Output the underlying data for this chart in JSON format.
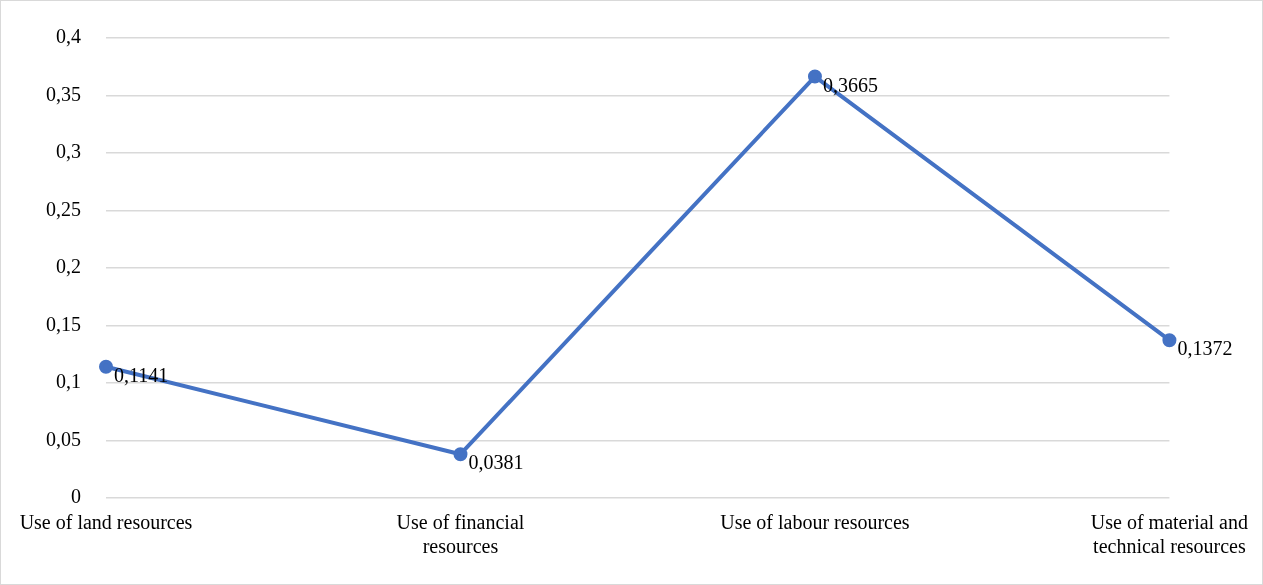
{
  "chart_data": {
    "type": "line",
    "categories": [
      "Use of land resources",
      "Use of financial resources",
      "Use of labour resources",
      "Use of material and technical resources"
    ],
    "series": [
      {
        "color": "#4472c4",
        "values": [
          0.1141,
          0.0381,
          0.3665,
          0.1372
        ],
        "value_labels": [
          "0,1141",
          "0,0381",
          "0,3665",
          "0,1372"
        ]
      }
    ],
    "ylim": [
      0,
      0.4
    ],
    "yticks": [
      {
        "value": 0,
        "label": "0"
      },
      {
        "value": 0.05,
        "label": "0,05"
      },
      {
        "value": 0.1,
        "label": "0,1"
      },
      {
        "value": 0.15,
        "label": "0,15"
      },
      {
        "value": 0.2,
        "label": "0,2"
      },
      {
        "value": 0.25,
        "label": "0,25"
      },
      {
        "value": 0.3,
        "label": "0,3"
      },
      {
        "value": 0.35,
        "label": "0,35"
      },
      {
        "value": 0.4,
        "label": "0,4"
      }
    ],
    "grid": "y",
    "marker": "circle",
    "line_style": "solid",
    "legend": false
  }
}
